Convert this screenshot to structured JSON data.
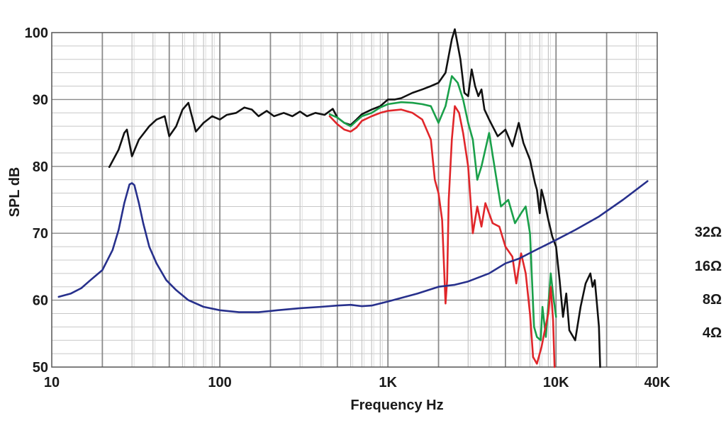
{
  "chart_data": {
    "type": "line",
    "xlabel": "Frequency Hz",
    "ylabel": "SPL dB",
    "x_scale": "log",
    "xlim": [
      10,
      40000
    ],
    "ylim": [
      50,
      100
    ],
    "grid": true,
    "x_ticks": [
      {
        "value": 10,
        "label": "10"
      },
      {
        "value": 100,
        "label": "100"
      },
      {
        "value": 1000,
        "label": "1K"
      },
      {
        "value": 10000,
        "label": "10K"
      },
      {
        "value": 40000,
        "label": "40K"
      }
    ],
    "y_ticks": [
      {
        "value": 50,
        "label": "50"
      },
      {
        "value": 60,
        "label": "60"
      },
      {
        "value": 70,
        "label": "70"
      },
      {
        "value": 80,
        "label": "80"
      },
      {
        "value": 90,
        "label": "90"
      },
      {
        "value": 100,
        "label": "100"
      }
    ],
    "impedance_labels": [
      "32Ω",
      "16Ω",
      "8Ω",
      "4Ω"
    ],
    "series": [
      {
        "color": "#111111",
        "points": [
          [
            22,
            79.9
          ],
          [
            25,
            82.5
          ],
          [
            27,
            85.0
          ],
          [
            28,
            85.5
          ],
          [
            30,
            81.5
          ],
          [
            33,
            84.0
          ],
          [
            38,
            86.0
          ],
          [
            42,
            87.0
          ],
          [
            47,
            87.5
          ],
          [
            50,
            84.5
          ],
          [
            55,
            86.0
          ],
          [
            60,
            88.5
          ],
          [
            65,
            89.5
          ],
          [
            72,
            85.2
          ],
          [
            80,
            86.5
          ],
          [
            90,
            87.5
          ],
          [
            100,
            87.0
          ],
          [
            110,
            87.7
          ],
          [
            125,
            88.0
          ],
          [
            140,
            88.8
          ],
          [
            155,
            88.5
          ],
          [
            170,
            87.5
          ],
          [
            190,
            88.3
          ],
          [
            210,
            87.5
          ],
          [
            240,
            88.0
          ],
          [
            270,
            87.5
          ],
          [
            300,
            88.2
          ],
          [
            330,
            87.5
          ],
          [
            370,
            88.0
          ],
          [
            420,
            87.7
          ],
          [
            470,
            88.6
          ],
          [
            500,
            87.3
          ],
          [
            550,
            86.5
          ],
          [
            600,
            86.2
          ],
          [
            650,
            87.0
          ],
          [
            700,
            87.8
          ],
          [
            800,
            88.5
          ],
          [
            900,
            89.0
          ],
          [
            1000,
            90.0
          ],
          [
            1100,
            90.0
          ],
          [
            1200,
            90.2
          ],
          [
            1400,
            91.0
          ],
          [
            1600,
            91.5
          ],
          [
            1800,
            92.0
          ],
          [
            2000,
            92.5
          ],
          [
            2200,
            94.0
          ],
          [
            2400,
            99.0
          ],
          [
            2500,
            100.5
          ],
          [
            2700,
            96.0
          ],
          [
            2850,
            91.0
          ],
          [
            3000,
            90.5
          ],
          [
            3150,
            94.5
          ],
          [
            3300,
            92.0
          ],
          [
            3450,
            90.5
          ],
          [
            3600,
            91.5
          ],
          [
            3750,
            88.5
          ],
          [
            4000,
            87.0
          ],
          [
            4500,
            84.5
          ],
          [
            5000,
            85.5
          ],
          [
            5500,
            83.0
          ],
          [
            6000,
            86.5
          ],
          [
            6400,
            83.5
          ],
          [
            7000,
            81.0
          ],
          [
            7500,
            77.5
          ],
          [
            7700,
            76.5
          ],
          [
            8000,
            73.0
          ],
          [
            8200,
            76.5
          ],
          [
            8500,
            75.0
          ],
          [
            9000,
            72.0
          ],
          [
            9500,
            69.5
          ],
          [
            10000,
            68.0
          ],
          [
            10500,
            63.0
          ],
          [
            11000,
            57.5
          ],
          [
            11500,
            61.0
          ],
          [
            12000,
            55.5
          ],
          [
            13000,
            54.0
          ],
          [
            14000,
            59.0
          ],
          [
            15000,
            62.5
          ],
          [
            16000,
            64.0
          ],
          [
            16500,
            62.0
          ],
          [
            17000,
            63.0
          ],
          [
            17500,
            59.5
          ],
          [
            18000,
            56.0
          ],
          [
            18300,
            50.0
          ]
        ]
      },
      {
        "color": "#1aa04a",
        "points": [
          [
            450,
            87.8
          ],
          [
            500,
            87.3
          ],
          [
            550,
            86.5
          ],
          [
            600,
            86.0
          ],
          [
            650,
            86.8
          ],
          [
            700,
            87.5
          ],
          [
            800,
            88.0
          ],
          [
            900,
            88.8
          ],
          [
            1000,
            89.3
          ],
          [
            1200,
            89.6
          ],
          [
            1400,
            89.5
          ],
          [
            1600,
            89.3
          ],
          [
            1800,
            89.0
          ],
          [
            2000,
            86.5
          ],
          [
            2200,
            89.0
          ],
          [
            2400,
            93.5
          ],
          [
            2600,
            92.5
          ],
          [
            2800,
            90.0
          ],
          [
            3000,
            86.5
          ],
          [
            3200,
            84.0
          ],
          [
            3400,
            78.0
          ],
          [
            3600,
            80.0
          ],
          [
            4000,
            85.0
          ],
          [
            4300,
            80.0
          ],
          [
            4700,
            74.0
          ],
          [
            5200,
            75.0
          ],
          [
            5700,
            71.5
          ],
          [
            6200,
            73.0
          ],
          [
            6600,
            74.0
          ],
          [
            7000,
            70.0
          ],
          [
            7400,
            56.0
          ],
          [
            7700,
            54.5
          ],
          [
            8100,
            54.0
          ],
          [
            8300,
            59.0
          ],
          [
            8700,
            54.5
          ],
          [
            9300,
            64.0
          ],
          [
            9700,
            60.0
          ],
          [
            10000,
            57.5
          ]
        ]
      },
      {
        "color": "#e0262a",
        "points": [
          [
            450,
            87.5
          ],
          [
            500,
            86.3
          ],
          [
            550,
            85.5
          ],
          [
            600,
            85.2
          ],
          [
            650,
            85.8
          ],
          [
            700,
            86.8
          ],
          [
            800,
            87.5
          ],
          [
            900,
            88.0
          ],
          [
            1000,
            88.3
          ],
          [
            1200,
            88.5
          ],
          [
            1400,
            88.0
          ],
          [
            1600,
            87.0
          ],
          [
            1800,
            84.0
          ],
          [
            1900,
            78.0
          ],
          [
            2000,
            76.0
          ],
          [
            2100,
            72.0
          ],
          [
            2200,
            59.5
          ],
          [
            2250,
            63.0
          ],
          [
            2300,
            75.0
          ],
          [
            2400,
            84.0
          ],
          [
            2500,
            89.0
          ],
          [
            2650,
            88.0
          ],
          [
            2800,
            85.0
          ],
          [
            3000,
            80.0
          ],
          [
            3200,
            70.0
          ],
          [
            3400,
            74.0
          ],
          [
            3600,
            71.0
          ],
          [
            3800,
            74.5
          ],
          [
            4200,
            71.5
          ],
          [
            4600,
            71.0
          ],
          [
            5000,
            68.0
          ],
          [
            5500,
            66.5
          ],
          [
            5800,
            62.5
          ],
          [
            6200,
            67.0
          ],
          [
            6600,
            64.0
          ],
          [
            7000,
            58.0
          ],
          [
            7300,
            51.5
          ],
          [
            7700,
            50.5
          ],
          [
            8200,
            53.0
          ],
          [
            8500,
            55.0
          ],
          [
            9000,
            58.0
          ],
          [
            9300,
            62.0
          ],
          [
            9600,
            57.0
          ],
          [
            9800,
            50.0
          ]
        ]
      },
      {
        "color": "#27308c",
        "points": [
          [
            11,
            60.5
          ],
          [
            13,
            61.0
          ],
          [
            15,
            61.8
          ],
          [
            17,
            63.0
          ],
          [
            20,
            64.5
          ],
          [
            23,
            67.5
          ],
          [
            25,
            70.5
          ],
          [
            27,
            74.5
          ],
          [
            29,
            77.3
          ],
          [
            30,
            77.5
          ],
          [
            31,
            77.2
          ],
          [
            33,
            74.5
          ],
          [
            35,
            71.5
          ],
          [
            38,
            68.0
          ],
          [
            42,
            65.5
          ],
          [
            48,
            63.0
          ],
          [
            55,
            61.5
          ],
          [
            65,
            60.0
          ],
          [
            80,
            59.0
          ],
          [
            100,
            58.5
          ],
          [
            130,
            58.2
          ],
          [
            170,
            58.2
          ],
          [
            220,
            58.5
          ],
          [
            300,
            58.8
          ],
          [
            400,
            59.0
          ],
          [
            500,
            59.2
          ],
          [
            600,
            59.3
          ],
          [
            700,
            59.1
          ],
          [
            800,
            59.2
          ],
          [
            1000,
            59.8
          ],
          [
            1500,
            61.0
          ],
          [
            2000,
            62.0
          ],
          [
            2500,
            62.3
          ],
          [
            3000,
            62.8
          ],
          [
            4000,
            64.0
          ],
          [
            5000,
            65.5
          ],
          [
            6000,
            66.2
          ],
          [
            8000,
            67.8
          ],
          [
            10000,
            69.0
          ],
          [
            13000,
            70.5
          ],
          [
            18000,
            72.5
          ],
          [
            25000,
            75.0
          ],
          [
            35000,
            77.8
          ]
        ]
      }
    ]
  }
}
